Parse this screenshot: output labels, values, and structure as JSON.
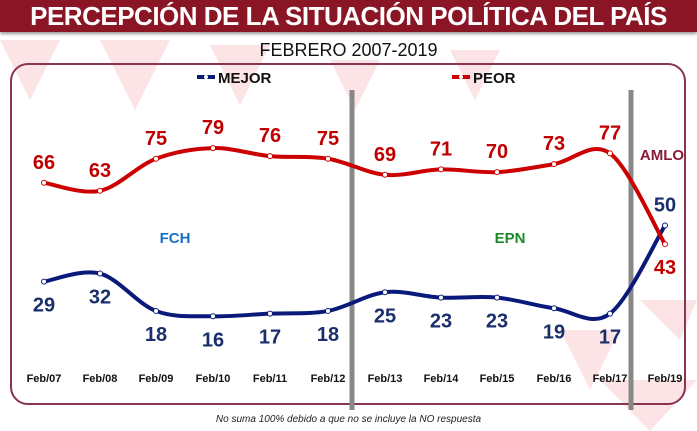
{
  "header": {
    "title": "PERCEPCIÓN DE LA SITUACIÓN POLÍTICA DEL PAÍS",
    "subtitle": "FEBRERO 2007-2019"
  },
  "footnote": "No suma 100% debido a que no se incluye la  NO respuesta",
  "chart_data": {
    "type": "line",
    "title": "PERCEPCIÓN DE LA SITUACIÓN POLÍTICA DEL PAÍS",
    "subtitle": "FEBRERO 2007-2019",
    "categories": [
      "Feb/07",
      "Feb/08",
      "Feb/09",
      "Feb/10",
      "Feb/11",
      "Feb/12",
      "Feb/13",
      "Feb/14",
      "Feb/15",
      "Feb/16",
      "Feb/17",
      "Feb/19"
    ],
    "series": [
      {
        "name": "MEJOR",
        "color": "#0a1a7a",
        "label_color": "#1a2f6b",
        "values": [
          29,
          32,
          18,
          16,
          17,
          18,
          25,
          23,
          23,
          19,
          17,
          50
        ]
      },
      {
        "name": "PEOR",
        "color": "#cc0000",
        "label_color": "#c00000",
        "values": [
          66,
          63,
          75,
          79,
          76,
          75,
          69,
          71,
          70,
          73,
          77,
          43
        ]
      }
    ],
    "periods": [
      {
        "label": "FCH",
        "color": "#1a6fc0"
      },
      {
        "label": "EPN",
        "color": "#1a8a2a"
      },
      {
        "label": "AMLO",
        "color": "#8a1a3a"
      }
    ],
    "legend": "top",
    "grid": false
  }
}
